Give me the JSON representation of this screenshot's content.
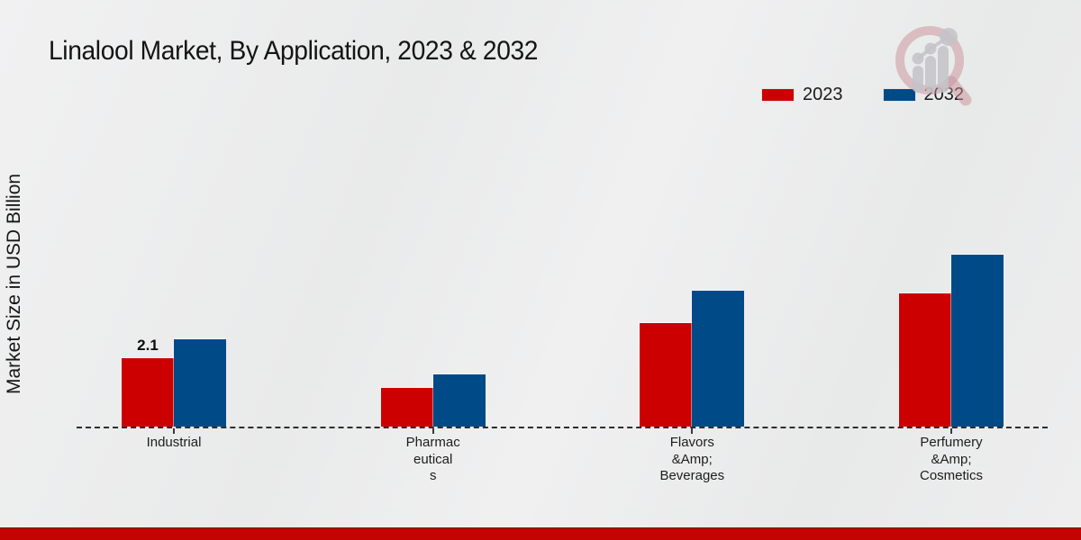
{
  "page_title": "Linalool Market, By Application, 2023 & 2032",
  "chart_data": {
    "type": "bar",
    "title": "Linalool Market, By Application, 2023 & 2032",
    "xlabel": "",
    "ylabel": "Market Size in USD Billion",
    "unit": "USD Billion",
    "ylim": [
      0,
      5.5
    ],
    "grid": false,
    "legend_position": "top-right",
    "categories": [
      "Industrial",
      "Pharmaceuticals",
      "Flavors &Amp; Beverages",
      "Perfumery &Amp; Cosmetics"
    ],
    "category_label_lines": [
      [
        "Industrial"
      ],
      [
        "Pharmac",
        "eutical",
        "s"
      ],
      [
        "Flavors",
        "&Amp;",
        "Beverages"
      ],
      [
        "Perfumery",
        "&Amp;",
        "Cosmetics"
      ]
    ],
    "series": [
      {
        "name": "2023",
        "color": "#cc0000",
        "values": [
          2.1,
          1.2,
          3.2,
          4.1
        ]
      },
      {
        "name": "2032",
        "color": "#004a87",
        "values": [
          2.7,
          1.6,
          4.2,
          5.3
        ]
      }
    ],
    "annotations": [
      {
        "text": "2.1",
        "series": "2023",
        "category": "Industrial"
      }
    ],
    "axis_style": "dashed-baseline-only"
  },
  "branding": {
    "watermark_icon": "magnifier-bar-chart-logo",
    "watermark_ring_color": "#c99097",
    "watermark_gray": "#c3c3c8",
    "footer_bar_color": "#c40303"
  }
}
